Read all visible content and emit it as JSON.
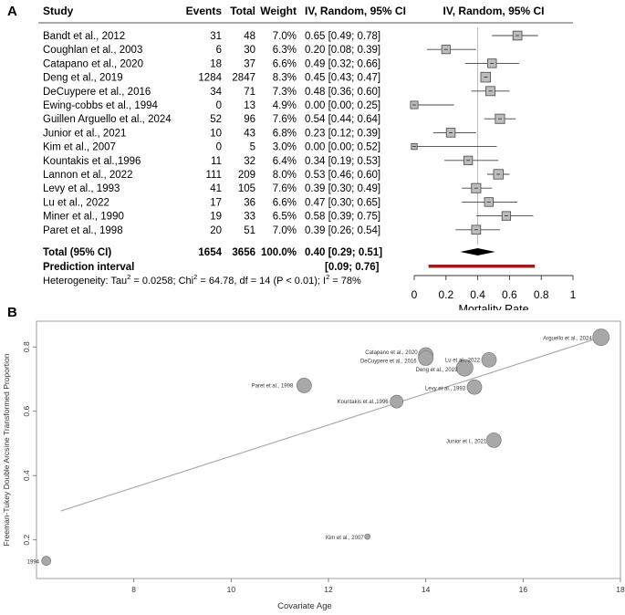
{
  "panelA": {
    "label": "A",
    "header": {
      "study": "Study",
      "events": "Events",
      "total": "Total",
      "weight": "Weight",
      "ci": "IV, Random, 95% CI",
      "plot": "IV, Random, 95% CI"
    },
    "chart_data": {
      "type": "forest",
      "xlabel": "Mortality Rate",
      "xlim": [
        0,
        1
      ],
      "xticks": [
        "0",
        "0.2",
        "0.4",
        "0.6",
        "0.8",
        "1"
      ],
      "rows": [
        {
          "study": "Bandt et al., 2012",
          "events": "31",
          "total": "48",
          "weight": "7.0%",
          "ci": "0.65 [0.49; 0.78]",
          "est": 0.65,
          "lo": 0.49,
          "hi": 0.78,
          "w": 7.0
        },
        {
          "study": "Coughlan et al., 2003",
          "events": "6",
          "total": "30",
          "weight": "6.3%",
          "ci": "0.20 [0.08; 0.39]",
          "est": 0.2,
          "lo": 0.08,
          "hi": 0.39,
          "w": 6.3
        },
        {
          "study": "Catapano et al., 2020",
          "events": "18",
          "total": "37",
          "weight": "6.6%",
          "ci": "0.49 [0.32; 0.66]",
          "est": 0.49,
          "lo": 0.32,
          "hi": 0.66,
          "w": 6.6
        },
        {
          "study": "Deng et al., 2019",
          "events": "1284",
          "total": "2847",
          "weight": "8.3%",
          "ci": "0.45 [0.43; 0.47]",
          "est": 0.45,
          "lo": 0.43,
          "hi": 0.47,
          "w": 8.3
        },
        {
          "study": "DeCuypere et al., 2016",
          "events": "34",
          "total": "71",
          "weight": "7.3%",
          "ci": "0.48 [0.36; 0.60]",
          "est": 0.48,
          "lo": 0.36,
          "hi": 0.6,
          "w": 7.3
        },
        {
          "study": "Ewing-cobbs et al., 1994",
          "events": "0",
          "total": "13",
          "weight": "4.9%",
          "ci": "0.00 [0.00; 0.25]",
          "est": 0.0,
          "lo": 0.0,
          "hi": 0.25,
          "w": 4.9
        },
        {
          "study": "Guillen Arguello et al., 2024",
          "events": "52",
          "total": "96",
          "weight": "7.6%",
          "ci": "0.54 [0.44; 0.64]",
          "est": 0.54,
          "lo": 0.44,
          "hi": 0.64,
          "w": 7.6
        },
        {
          "study": "Junior et al., 2021",
          "events": "10",
          "total": "43",
          "weight": "6.8%",
          "ci": "0.23 [0.12; 0.39]",
          "est": 0.23,
          "lo": 0.12,
          "hi": 0.39,
          "w": 6.8
        },
        {
          "study": "Kim et al., 2007",
          "events": "0",
          "total": "5",
          "weight": "3.0%",
          "ci": "0.00 [0.00; 0.52]",
          "est": 0.0,
          "lo": 0.0,
          "hi": 0.52,
          "w": 3.0
        },
        {
          "study": "Kountakis et al.,1996",
          "events": "11",
          "total": "32",
          "weight": "6.4%",
          "ci": "0.34 [0.19; 0.53]",
          "est": 0.34,
          "lo": 0.19,
          "hi": 0.53,
          "w": 6.4
        },
        {
          "study": "Lannon et al., 2022",
          "events": "111",
          "total": "209",
          "weight": "8.0%",
          "ci": "0.53 [0.46; 0.60]",
          "est": 0.53,
          "lo": 0.46,
          "hi": 0.6,
          "w": 8.0
        },
        {
          "study": "Levy et al., 1993",
          "events": "41",
          "total": "105",
          "weight": "7.6%",
          "ci": "0.39 [0.30; 0.49]",
          "est": 0.39,
          "lo": 0.3,
          "hi": 0.49,
          "w": 7.6
        },
        {
          "study": "Lu et al., 2022",
          "events": "17",
          "total": "36",
          "weight": "6.6%",
          "ci": "0.47 [0.30; 0.65]",
          "est": 0.47,
          "lo": 0.3,
          "hi": 0.65,
          "w": 6.6
        },
        {
          "study": "Miner et al., 1990",
          "events": "19",
          "total": "33",
          "weight": "6.5%",
          "ci": "0.58 [0.39; 0.75]",
          "est": 0.58,
          "lo": 0.39,
          "hi": 0.75,
          "w": 6.5
        },
        {
          "study": "Paret et al., 1998",
          "events": "20",
          "total": "51",
          "weight": "7.0%",
          "ci": "0.39 [0.26; 0.54]",
          "est": 0.39,
          "lo": 0.26,
          "hi": 0.54,
          "w": 7.0
        }
      ],
      "total": {
        "label": "Total (95% CI)",
        "events": "1654",
        "total": "3656",
        "weight": "100.0%",
        "ci": "0.40 [0.29; 0.51]",
        "est": 0.4,
        "lo": 0.29,
        "hi": 0.51
      },
      "prediction": {
        "label": "Prediction interval",
        "ci": "[0.09; 0.76]",
        "lo": 0.09,
        "hi": 0.76
      },
      "heterogeneity": {
        "prefix": "Heterogeneity: Tau",
        "tau2": "2",
        "mid": " = 0.0258; Chi",
        "chi2": "2",
        "rest": " = 64.78, df = 14 (P < 0.01); I",
        "i2": "2",
        "end": " = 78%"
      },
      "colors": {
        "box": "#bdbdbd",
        "pred": "#9b1c1c",
        "diamond": "#000000",
        "ref": "#aaaaaa"
      }
    }
  },
  "panelB": {
    "label": "B",
    "chart_data": {
      "type": "scatter",
      "xlabel": "Covariate Age",
      "ylabel": "Freeman-Tukey Double Arcsine Transformed Proportion",
      "xlim": [
        6,
        18
      ],
      "ylim": [
        0.08,
        0.88
      ],
      "xticks": [
        8,
        10,
        12,
        14,
        16,
        18
      ],
      "yticks": [
        0.2,
        0.4,
        0.6,
        0.8
      ],
      "fit": {
        "x1": 6.5,
        "y1": 0.29,
        "x2": 17.6,
        "y2": 0.83
      },
      "points": [
        {
          "label": "1994",
          "x": 6.2,
          "y": 0.135,
          "s": 5
        },
        {
          "label": "Kim et al., 2007",
          "x": 12.8,
          "y": 0.21,
          "s": 3
        },
        {
          "label": "Paret et al., 1998",
          "x": 11.5,
          "y": 0.68,
          "s": 8
        },
        {
          "label": "Kountakis et al.,1996",
          "x": 13.4,
          "y": 0.63,
          "s": 7
        },
        {
          "label": "Catapano et al., 2020",
          "x": 14.0,
          "y": 0.775,
          "s": 8
        },
        {
          "label": "DeCuypere et al., 2016",
          "x": 14.0,
          "y": 0.765,
          "s": 8
        },
        {
          "label": "Deng et al., 2019",
          "x": 14.8,
          "y": 0.735,
          "s": 9
        },
        {
          "label": "Lu et al., 2022",
          "x": 15.3,
          "y": 0.76,
          "s": 8
        },
        {
          "label": "Levy et al., 1993",
          "x": 15.0,
          "y": 0.675,
          "s": 8
        },
        {
          "label": "Junior et l., 2021",
          "x": 15.4,
          "y": 0.51,
          "s": 8
        },
        {
          "label": "Arguello et al., 2024",
          "x": 17.6,
          "y": 0.83,
          "s": 9
        }
      ],
      "colors": {
        "point": "#a8a8a8",
        "stroke": "#777777",
        "line": "#aaaaaa",
        "border": "#888888"
      }
    }
  }
}
